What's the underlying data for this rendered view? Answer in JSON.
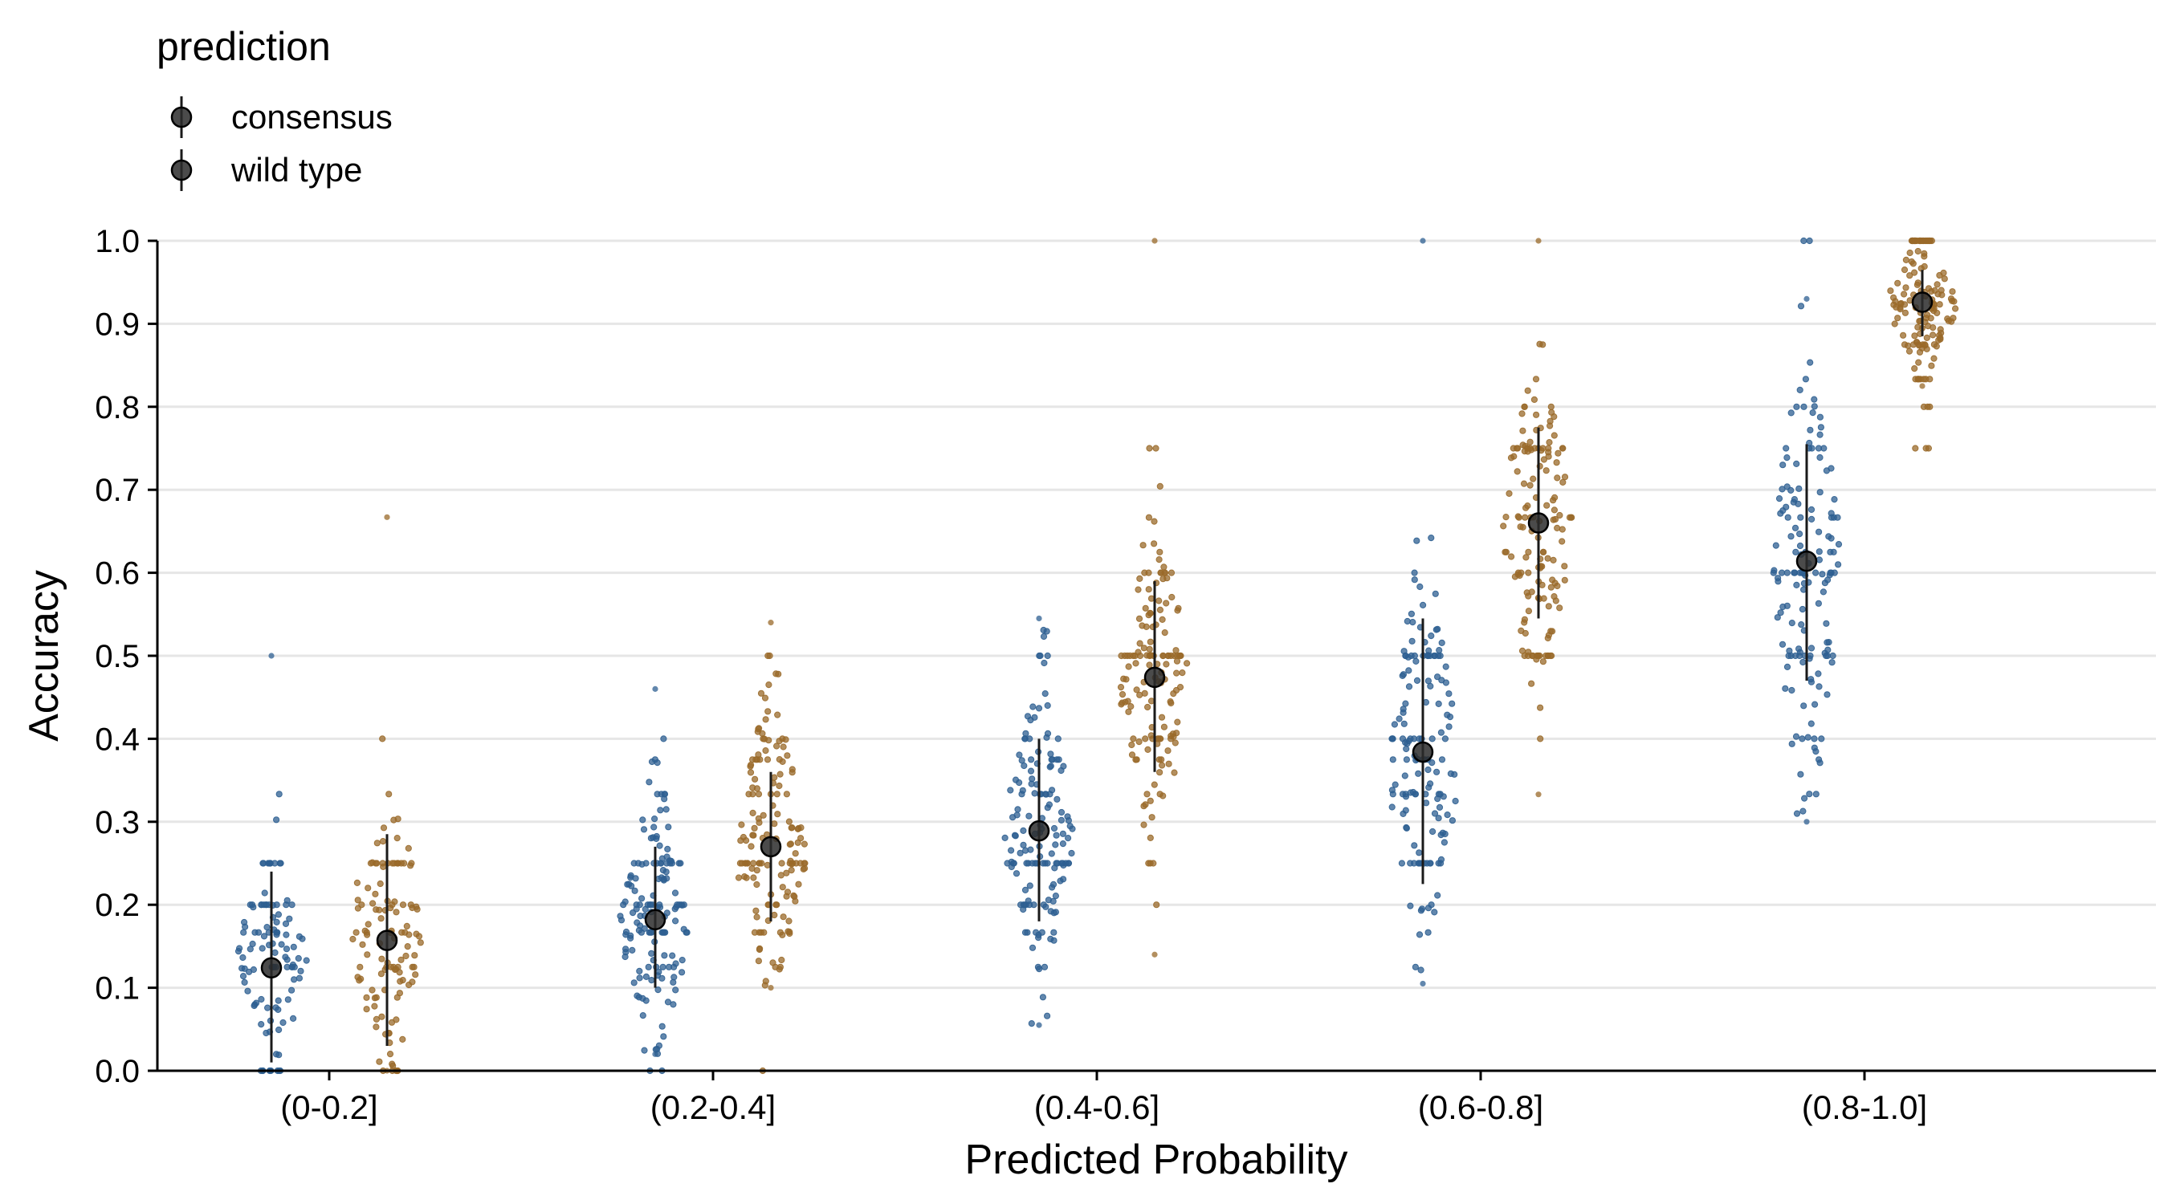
{
  "chart_data": {
    "type": "scatter",
    "title": "",
    "xlabel": "Predicted Probability",
    "ylabel": "Accuracy",
    "ylim": [
      0,
      1
    ],
    "yticks": [
      "0.0",
      "0.1",
      "0.2",
      "0.3",
      "0.4",
      "0.5",
      "0.6",
      "0.7",
      "0.8",
      "0.9",
      "1.0"
    ],
    "categories": [
      "(0-0.2]",
      "(0.2-0.4]",
      "(0.4-0.6]",
      "(0.6-0.8]",
      "(0.8-1.0]"
    ],
    "grid": "horizontal",
    "legend": {
      "title": "prediction",
      "placement": "top-left",
      "entries": [
        "consensus",
        "wild type"
      ]
    },
    "colors": {
      "consensus": "#2E5F91",
      "wild type": "#9A6A2A",
      "summary": "#1A1A1A"
    },
    "series": [
      {
        "name": "consensus",
        "means": [
          0.124,
          0.182,
          0.289,
          0.384,
          0.614
        ],
        "lower": [
          0.01,
          0.1,
          0.18,
          0.225,
          0.47
        ],
        "upper": [
          0.24,
          0.27,
          0.4,
          0.545,
          0.755
        ],
        "spread": [
          {
            "center": 0.13,
            "sd": 0.06,
            "min": 0.0,
            "max": 0.5,
            "n": 110
          },
          {
            "center": 0.18,
            "sd": 0.075,
            "min": 0.02,
            "max": 0.46,
            "n": 150
          },
          {
            "center": 0.29,
            "sd": 0.085,
            "min": 0.055,
            "max": 0.545,
            "n": 150
          },
          {
            "center": 0.37,
            "sd": 0.11,
            "min": 0.105,
            "max": 1.0,
            "n": 150
          },
          {
            "center": 0.6,
            "sd": 0.13,
            "min": 0.3,
            "max": 0.93,
            "n": 150
          }
        ]
      },
      {
        "name": "wild type",
        "means": [
          0.157,
          0.27,
          0.474,
          0.66,
          0.926
        ],
        "lower": [
          0.03,
          0.18,
          0.36,
          0.545,
          0.885
        ],
        "upper": [
          0.285,
          0.36,
          0.59,
          0.775,
          0.965
        ],
        "spread": [
          {
            "center": 0.17,
            "sd": 0.085,
            "min": 0.0,
            "max": 0.667,
            "n": 120
          },
          {
            "center": 0.27,
            "sd": 0.08,
            "min": 0.1,
            "max": 0.54,
            "n": 150
          },
          {
            "center": 0.47,
            "sd": 0.09,
            "min": 0.14,
            "max": 1.0,
            "n": 150
          },
          {
            "center": 0.66,
            "sd": 0.1,
            "min": 0.333,
            "max": 1.0,
            "n": 150
          },
          {
            "center": 0.925,
            "sd": 0.035,
            "min": 0.825,
            "max": 1.0,
            "n": 150
          }
        ]
      }
    ]
  }
}
